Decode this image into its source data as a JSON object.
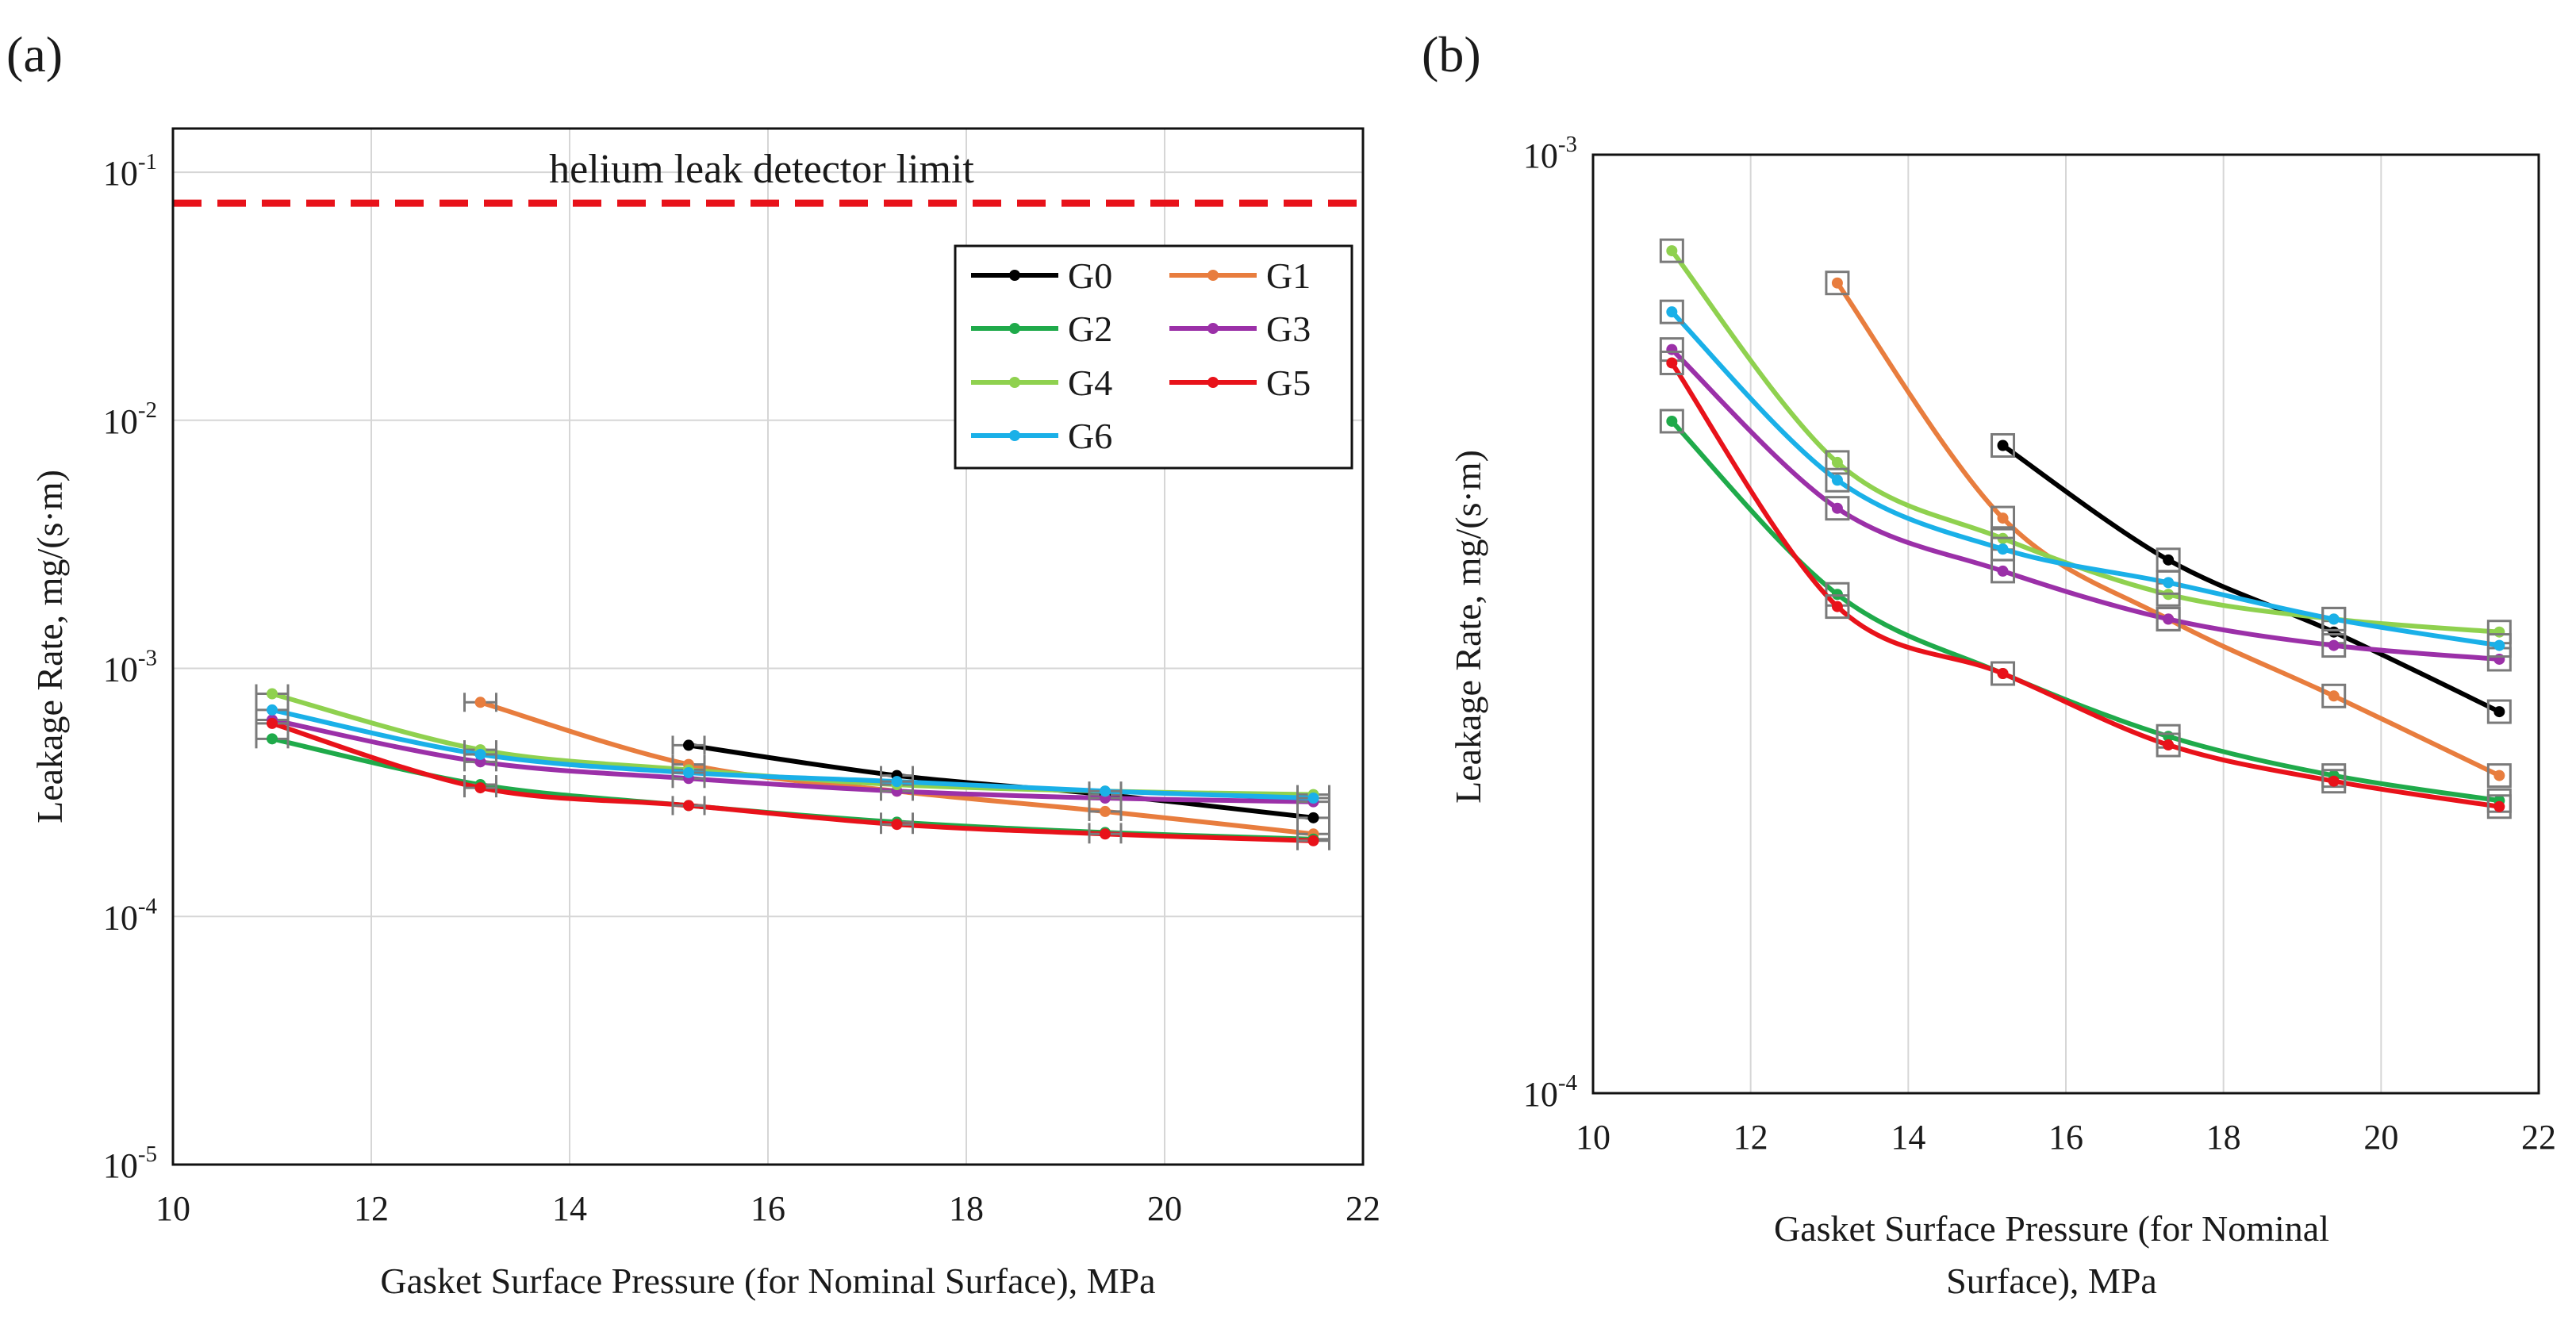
{
  "panel_labels": [
    "(a)",
    "(b)"
  ],
  "colors": {
    "G0": "#000000",
    "G1": "#e87d3e",
    "G2": "#1faa4a",
    "G3": "#9b30a8",
    "G4": "#8fd14f",
    "G5": "#e8121a",
    "G6": "#1ab0e8",
    "limit": "#e8121a",
    "grid": "#d6d6d6",
    "errorbar": "#7a7a7a"
  },
  "chart_data": [
    {
      "id": "a",
      "type": "line",
      "panel_label": "(a)",
      "title": "",
      "xlabel": "Gasket Surface Pressure (for Nominal Surface), MPa",
      "xlabel_lines": [
        "Gasket Surface Pressure (for Nominal Surface), MPa"
      ],
      "ylabel": "Leakage Rate, mg/(s·m)",
      "xscale": "linear",
      "yscale": "log",
      "xlim": [
        10,
        22
      ],
      "ylim": [
        1e-05,
        0.15
      ],
      "xticks": [
        "10",
        "12",
        "14",
        "16",
        "18",
        "20",
        "22"
      ],
      "yticks": [
        {
          "base": "10",
          "exp": "-5"
        },
        {
          "base": "10",
          "exp": "-4"
        },
        {
          "base": "10",
          "exp": "-3"
        },
        {
          "base": "10",
          "exp": "-2"
        },
        {
          "base": "10",
          "exp": "-1"
        }
      ],
      "grid": true,
      "annotation": {
        "text": "helium leak detector limit",
        "y": 0.075
      },
      "legend": {
        "position": "top-right",
        "columns": 2
      },
      "series": [
        {
          "name": "G0",
          "x": [
            15.2,
            17.3,
            19.4,
            21.5
          ],
          "y": [
            0.00049,
            0.00037,
            0.00031,
            0.00025
          ]
        },
        {
          "name": "G1",
          "x": [
            13.1,
            15.2,
            17.3,
            19.4,
            21.5
          ],
          "y": [
            0.00073,
            0.00041,
            0.00032,
            0.000265,
            0.000215
          ]
        },
        {
          "name": "G2",
          "x": [
            11.0,
            13.1,
            15.2,
            17.3,
            19.4,
            21.5
          ],
          "y": [
            0.00052,
            0.00034,
            0.00028,
            0.00024,
            0.000218,
            0.000205
          ]
        },
        {
          "name": "G3",
          "x": [
            11.0,
            13.1,
            15.2,
            17.3,
            19.4,
            21.5
          ],
          "y": [
            0.00062,
            0.00042,
            0.00036,
            0.00032,
            0.0003,
            0.00029
          ]
        },
        {
          "name": "G4",
          "x": [
            11.0,
            13.1,
            15.2,
            17.3,
            19.4,
            21.5
          ],
          "y": [
            0.00079,
            0.00047,
            0.00039,
            0.00034,
            0.00032,
            0.00031
          ]
        },
        {
          "name": "G5",
          "x": [
            11.0,
            13.1,
            15.2,
            17.3,
            19.4,
            21.5
          ],
          "y": [
            0.0006,
            0.00033,
            0.00028,
            0.000235,
            0.000215,
            0.000202
          ]
        },
        {
          "name": "G6",
          "x": [
            11.0,
            13.1,
            15.2,
            17.3,
            19.4,
            21.5
          ],
          "y": [
            0.00068,
            0.00045,
            0.00038,
            0.00035,
            0.00032,
            0.0003
          ]
        }
      ]
    },
    {
      "id": "b",
      "type": "line",
      "panel_label": "(b)",
      "title": "",
      "xlabel": "Gasket Surface Pressure (for Nominal Surface), MPa",
      "xlabel_lines": [
        "Gasket Surface Pressure (for Nominal",
        "Surface), MPa"
      ],
      "ylabel": "Leakage Rate, mg/(s·m)",
      "xscale": "linear",
      "yscale": "log",
      "xlim": [
        10,
        22
      ],
      "ylim": [
        0.0001,
        0.001
      ],
      "xticks": [
        "10",
        "12",
        "14",
        "16",
        "18",
        "20",
        "22"
      ],
      "yticks": [
        {
          "base": "10",
          "exp": "-4"
        },
        {
          "base": "10",
          "exp": "-3"
        }
      ],
      "grid": true,
      "series": [
        {
          "name": "G0",
          "x": [
            15.2,
            17.3,
            19.4,
            21.5
          ],
          "y": [
            0.00049,
            0.00037,
            0.00031,
            0.000255
          ]
        },
        {
          "name": "G1",
          "x": [
            13.1,
            15.2,
            17.3,
            19.4,
            21.5
          ],
          "y": [
            0.00073,
            0.00041,
            0.00032,
            0.000265,
            0.000218
          ]
        },
        {
          "name": "G2",
          "x": [
            11.0,
            13.1,
            15.2,
            17.3,
            19.4,
            21.5
          ],
          "y": [
            0.00052,
            0.00034,
            0.00028,
            0.00024,
            0.000218,
            0.000205
          ]
        },
        {
          "name": "G3",
          "x": [
            11.0,
            13.1,
            15.2,
            17.3,
            19.4,
            21.5
          ],
          "y": [
            0.00062,
            0.00042,
            0.00036,
            0.00032,
            0.0003,
            0.00029
          ]
        },
        {
          "name": "G4",
          "x": [
            11.0,
            13.1,
            15.2,
            17.3,
            19.4,
            21.5
          ],
          "y": [
            0.00079,
            0.00047,
            0.00039,
            0.00034,
            0.00032,
            0.00031
          ]
        },
        {
          "name": "G5",
          "x": [
            11.0,
            13.1,
            15.2,
            17.3,
            19.4,
            21.5
          ],
          "y": [
            0.0006,
            0.00033,
            0.00028,
            0.000235,
            0.000215,
            0.000202
          ]
        },
        {
          "name": "G6",
          "x": [
            11.0,
            13.1,
            15.2,
            17.3,
            19.4,
            21.5
          ],
          "y": [
            0.00068,
            0.00045,
            0.00038,
            0.00035,
            0.00032,
            0.0003
          ]
        }
      ]
    }
  ]
}
